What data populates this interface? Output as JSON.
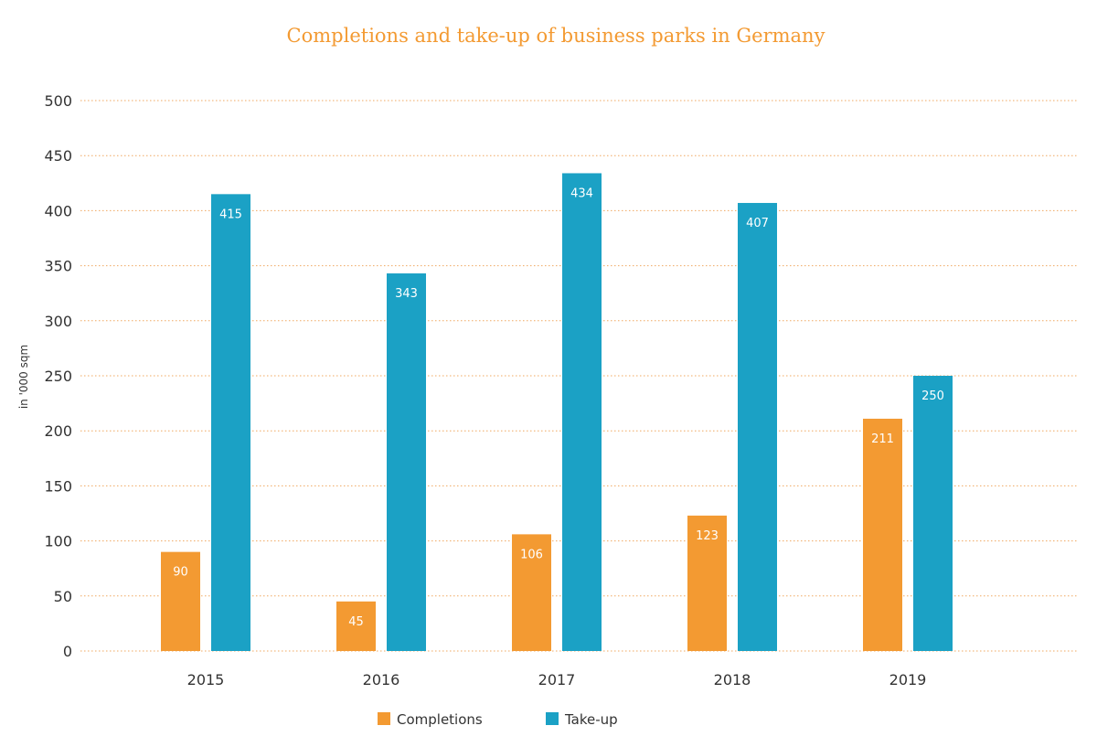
{
  "chart_data": {
    "type": "bar",
    "title": "Completions and take-up of business parks in Germany",
    "ylabel": "in '000 sqm",
    "xlabel": "",
    "ylim": [
      0,
      500
    ],
    "yticks": [
      0,
      50,
      100,
      150,
      200,
      250,
      300,
      350,
      400,
      450,
      500
    ],
    "categories": [
      "2015",
      "2016",
      "2017",
      "2018",
      "2019"
    ],
    "series": [
      {
        "name": "Completions",
        "color": "#f39a32",
        "values": [
          90,
          45,
          106,
          123,
          211
        ]
      },
      {
        "name": "Take-up",
        "color": "#1ba1c5",
        "values": [
          415,
          343,
          434,
          407,
          250
        ]
      }
    ],
    "grid": true,
    "legend": "bottom-center"
  }
}
